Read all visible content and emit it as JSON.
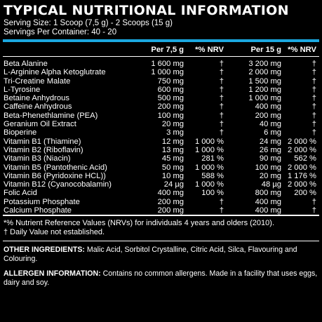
{
  "title": "TYPICAL NUTRITIONAL INFORMATION",
  "serving_size": "Serving Size: 1 Scoop (7,5 g) - 2 Scoops (15 g)",
  "servings_per_container": "Servings Per Container: 40 - 20",
  "headers": {
    "per_7_5g": "Per 7,5 g",
    "nrv_1": "*% NRV",
    "per_15g": "Per 15 g",
    "nrv_2": "*% NRV"
  },
  "rows": [
    {
      "name": "Beta Alanine",
      "a": "1 600 mg",
      "b": "†",
      "c": "3 200 mg",
      "d": "†"
    },
    {
      "name": "L-Arginine Alpha Ketoglutrate",
      "a": "1 000 mg",
      "b": "†",
      "c": "2 000 mg",
      "d": "†"
    },
    {
      "name": "Tri-Creatine Malate",
      "a": "750 mg",
      "b": "†",
      "c": "1 500 mg",
      "d": "†"
    },
    {
      "name": "L-Tyrosine",
      "a": "600 mg",
      "b": "†",
      "c": "1 200 mg",
      "d": "†"
    },
    {
      "name": "Betaine Anhydrous",
      "a": "500 mg",
      "b": "†",
      "c": "1 000 mg",
      "d": "†"
    },
    {
      "name": "Caffeine Anhydrous",
      "a": "200 mg",
      "b": "†",
      "c": "400 mg",
      "d": "†"
    },
    {
      "name": "Beta-Phenethlamine (PEA)",
      "a": "100 mg",
      "b": "†",
      "c": "200 mg",
      "d": "†"
    },
    {
      "name": "Geranium Oil Extract",
      "a": "20 mg",
      "b": "†",
      "c": "40 mg",
      "d": "†"
    },
    {
      "name": "Bioperine",
      "a": "3 mg",
      "b": "†",
      "c": "6 mg",
      "d": "†"
    },
    {
      "name": "Vitamin B1 (Thiamine)",
      "a": "12 mg",
      "b": "1 000 %",
      "c": "24 mg",
      "d": "2 000 %"
    },
    {
      "name": "Vitamin B2 (Riboflavin)",
      "a": "13 mg",
      "b": "1 000 %",
      "c": "26 mg",
      "d": "2 000 %"
    },
    {
      "name": "Vitamin B3 (Niacin)",
      "a": "45 mg",
      "b": "281 %",
      "c": "90 mg",
      "d": "562 %"
    },
    {
      "name": "Vitamin B5 (Pantothenic Acid)",
      "a": "50 mg",
      "b": "1 000 %",
      "c": "100 mg",
      "d": "2 000 %"
    },
    {
      "name": "Vitamin B6 (Pyridoxine HCL))",
      "a": "10 mg",
      "b": "588 %",
      "c": "20 mg",
      "d": "1 176 %"
    },
    {
      "name": "Vitamin B12 (Cyanocobalamin)",
      "a": "24 µg",
      "b": "1 000 %",
      "c": "48 µg",
      "d": "2 000 %"
    },
    {
      "name": "Folic Acid",
      "a": "400 mg",
      "b": "100 %",
      "c": "800 mg",
      "d": "200 %"
    },
    {
      "name": "Potassium Phosphate",
      "a": "200 mg",
      "b": "†",
      "c": "400 mg",
      "d": "†"
    },
    {
      "name": "Calcium Phosphate",
      "a": "200 mg",
      "b": "†",
      "c": "400 mg",
      "d": "†"
    }
  ],
  "note_nrv": "*% Nutrient Reference Values (NRVs) for individuals 4 years and olders (2010).",
  "note_dagger": "† Daily Value not established.",
  "other_ingredients": {
    "label": "OTHER INGREDIENTS:",
    "text": " Malic Acid, Sorbitol Crystalline, Citric Acid, Silca, Flavouring and Colouring."
  },
  "allergen_information": {
    "label": "ALLERGEN INFORMATION:",
    "text": " Contains no common allergens. Made in a facility that uses eggs, dairy and soy."
  }
}
